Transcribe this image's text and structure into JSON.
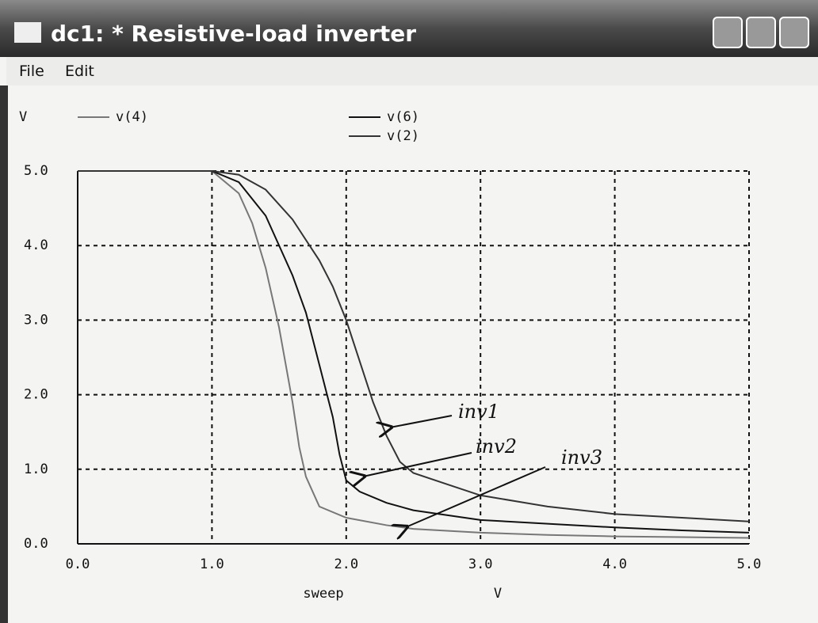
{
  "window": {
    "title": "dc1: * Resistive-load inverter",
    "menu": [
      "File",
      "Edit"
    ]
  },
  "chart_data": {
    "type": "line",
    "y_unit": "V",
    "xlabel": "sweep",
    "x_unit": "V",
    "xlim": [
      0,
      5
    ],
    "ylim": [
      0,
      5
    ],
    "xticks": [
      {
        "value": 0,
        "label": "0.0"
      },
      {
        "value": 1,
        "label": "1.0"
      },
      {
        "value": 2,
        "label": "2.0"
      },
      {
        "value": 3,
        "label": "3.0"
      },
      {
        "value": 4,
        "label": "4.0"
      },
      {
        "value": 5,
        "label": "5.0"
      }
    ],
    "yticks": [
      {
        "value": 0,
        "label": "0.0"
      },
      {
        "value": 1,
        "label": "1.0"
      },
      {
        "value": 2,
        "label": "2.0"
      },
      {
        "value": 3,
        "label": "3.0"
      },
      {
        "value": 4,
        "label": "4.0"
      },
      {
        "value": 5,
        "label": "5.0"
      }
    ],
    "grid": true,
    "series": [
      {
        "name": "v(4)",
        "color": "#777777",
        "x": [
          0,
          1.0,
          1.2,
          1.3,
          1.4,
          1.5,
          1.6,
          1.65,
          1.7,
          1.8,
          2.0,
          2.3,
          2.5,
          3.0,
          3.5,
          4.0,
          4.5,
          5.0
        ],
        "values": [
          5,
          5,
          4.7,
          4.3,
          3.7,
          2.9,
          1.9,
          1.3,
          0.9,
          0.5,
          0.35,
          0.25,
          0.2,
          0.15,
          0.12,
          0.1,
          0.09,
          0.08
        ]
      },
      {
        "name": "v(6)",
        "color": "#111111",
        "x": [
          0,
          1.0,
          1.2,
          1.4,
          1.6,
          1.7,
          1.8,
          1.9,
          1.95,
          2.0,
          2.1,
          2.3,
          2.5,
          3.0,
          3.5,
          4.0,
          4.5,
          5.0
        ],
        "values": [
          5,
          5,
          4.85,
          4.4,
          3.6,
          3.1,
          2.4,
          1.7,
          1.2,
          0.85,
          0.7,
          0.55,
          0.45,
          0.32,
          0.27,
          0.22,
          0.18,
          0.15
        ]
      },
      {
        "name": "v(2)",
        "color": "#333333",
        "x": [
          0,
          1.0,
          1.2,
          1.4,
          1.6,
          1.8,
          1.9,
          2.0,
          2.1,
          2.2,
          2.3,
          2.4,
          2.5,
          2.75,
          3.0,
          3.5,
          4.0,
          4.5,
          5.0
        ],
        "values": [
          5,
          5,
          4.95,
          4.75,
          4.35,
          3.8,
          3.45,
          3.0,
          2.45,
          1.9,
          1.45,
          1.1,
          0.95,
          0.8,
          0.65,
          0.5,
          0.4,
          0.35,
          0.3
        ]
      }
    ],
    "annotations": [
      "inv1",
      "inv2",
      "inv3"
    ]
  }
}
